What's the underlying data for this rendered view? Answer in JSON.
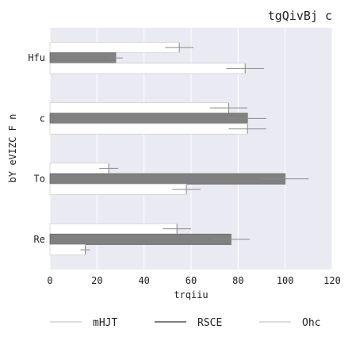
{
  "chart_data": {
    "type": "bar",
    "orientation": "horizontal",
    "title": "tgQivBj c",
    "xlabel": "trqiiu",
    "ylabel": "bY eVIZC F n",
    "categories": [
      "Hfu",
      "c",
      "To",
      "Re"
    ],
    "xlim": [
      0,
      120
    ],
    "xticks": [
      0,
      20,
      40,
      60,
      80,
      100,
      120
    ],
    "grid": true,
    "legend_position": "bottom",
    "series": [
      {
        "name": "mHJT",
        "values": [
          55,
          76,
          25,
          54
        ],
        "errors": [
          6,
          8,
          4,
          6
        ],
        "color": "#ffffff"
      },
      {
        "name": "RSCE",
        "values": [
          28,
          84,
          100,
          77
        ],
        "errors": [
          3,
          8,
          10,
          8
        ],
        "color": "#808080"
      },
      {
        "name": "Ohc",
        "values": [
          83,
          84,
          58,
          15
        ],
        "errors": [
          8,
          8,
          6,
          2
        ],
        "color": "#ffffff"
      }
    ]
  }
}
